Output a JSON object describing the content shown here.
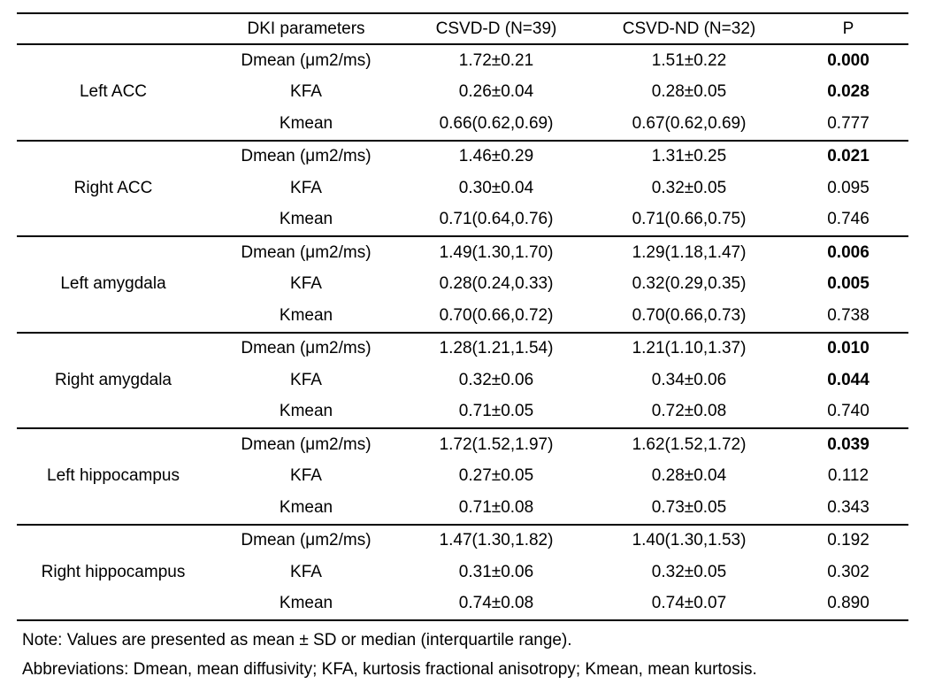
{
  "colors": {
    "text": "#000000",
    "background": "#ffffff",
    "rule": "#000000"
  },
  "table": {
    "headers": [
      "",
      "DKI parameters",
      "CSVD-D (N=39)",
      "CSVD-ND (N=32)",
      "P"
    ],
    "groups": [
      {
        "region": "Left ACC",
        "rows": [
          {
            "parameter": "Dmean (μm2/ms)",
            "csvd_d": "1.72±0.21",
            "csvd_nd": "1.51±0.22",
            "p": "0.000",
            "p_bold": true
          },
          {
            "parameter": "KFA",
            "csvd_d": "0.26±0.04",
            "csvd_nd": "0.28±0.05",
            "p": "0.028",
            "p_bold": true
          },
          {
            "parameter": "Kmean",
            "csvd_d": "0.66(0.62,0.69)",
            "csvd_nd": "0.67(0.62,0.69)",
            "p": "0.777",
            "p_bold": false
          }
        ]
      },
      {
        "region": "Right ACC",
        "rows": [
          {
            "parameter": "Dmean (μm2/ms)",
            "csvd_d": "1.46±0.29",
            "csvd_nd": "1.31±0.25",
            "p": "0.021",
            "p_bold": true
          },
          {
            "parameter": "KFA",
            "csvd_d": "0.30±0.04",
            "csvd_nd": "0.32±0.05",
            "p": "0.095",
            "p_bold": false
          },
          {
            "parameter": "Kmean",
            "csvd_d": "0.71(0.64,0.76)",
            "csvd_nd": "0.71(0.66,0.75)",
            "p": "0.746",
            "p_bold": false
          }
        ]
      },
      {
        "region": "Left amygdala",
        "rows": [
          {
            "parameter": "Dmean (μm2/ms)",
            "csvd_d": "1.49(1.30,1.70)",
            "csvd_nd": "1.29(1.18,1.47)",
            "p": "0.006",
            "p_bold": true
          },
          {
            "parameter": "KFA",
            "csvd_d": "0.28(0.24,0.33)",
            "csvd_nd": "0.32(0.29,0.35)",
            "p": "0.005",
            "p_bold": true
          },
          {
            "parameter": "Kmean",
            "csvd_d": "0.70(0.66,0.72)",
            "csvd_nd": "0.70(0.66,0.73)",
            "p": "0.738",
            "p_bold": false
          }
        ]
      },
      {
        "region": "Right amygdala",
        "rows": [
          {
            "parameter": "Dmean (μm2/ms)",
            "csvd_d": "1.28(1.21,1.54)",
            "csvd_nd": "1.21(1.10,1.37)",
            "p": "0.010",
            "p_bold": true
          },
          {
            "parameter": "KFA",
            "csvd_d": "0.32±0.06",
            "csvd_nd": "0.34±0.06",
            "p": "0.044",
            "p_bold": true
          },
          {
            "parameter": "Kmean",
            "csvd_d": "0.71±0.05",
            "csvd_nd": "0.72±0.08",
            "p": "0.740",
            "p_bold": false
          }
        ]
      },
      {
        "region": "Left hippocampus",
        "rows": [
          {
            "parameter": "Dmean (μm2/ms)",
            "csvd_d": "1.72(1.52,1.97)",
            "csvd_nd": "1.62(1.52,1.72)",
            "p": "0.039",
            "p_bold": true
          },
          {
            "parameter": "KFA",
            "csvd_d": "0.27±0.05",
            "csvd_nd": "0.28±0.04",
            "p": "0.112",
            "p_bold": false
          },
          {
            "parameter": "Kmean",
            "csvd_d": "0.71±0.08",
            "csvd_nd": "0.73±0.05",
            "p": "0.343",
            "p_bold": false
          }
        ]
      },
      {
        "region": "Right hippocampus",
        "rows": [
          {
            "parameter": "Dmean (μm2/ms)",
            "csvd_d": "1.47(1.30,1.82)",
            "csvd_nd": "1.40(1.30,1.53)",
            "p": "0.192",
            "p_bold": false
          },
          {
            "parameter": "KFA",
            "csvd_d": "0.31±0.06",
            "csvd_nd": "0.32±0.05",
            "p": "0.302",
            "p_bold": false
          },
          {
            "parameter": "Kmean",
            "csvd_d": "0.74±0.08",
            "csvd_nd": "0.74±0.07",
            "p": "0.890",
            "p_bold": false
          }
        ]
      }
    ]
  },
  "notes": {
    "note": "Note: Values are presented as mean ± SD or median (interquartile range).",
    "abbreviations": "Abbreviations: Dmean, mean diffusivity; KFA, kurtosis fractional anisotropy; Kmean, mean kurtosis."
  }
}
